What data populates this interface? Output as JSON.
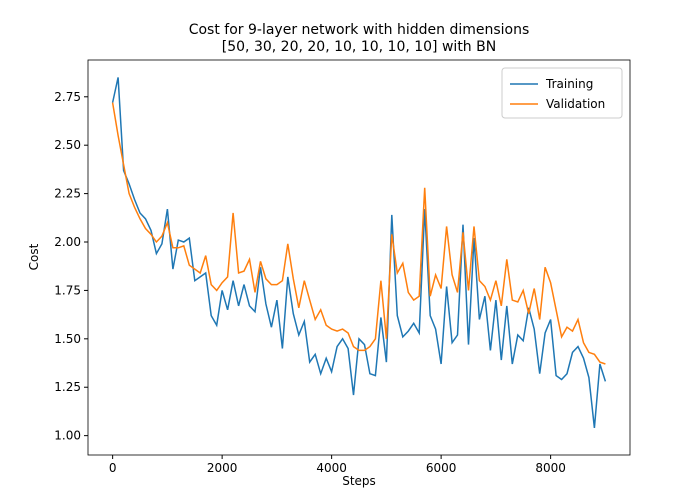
{
  "chart_data": {
    "type": "line",
    "title": [
      "Cost for 9-layer network with hidden dimensions",
      "[50, 30, 20, 20, 10, 10, 10, 10] with BN"
    ],
    "xlabel": "Steps",
    "ylabel": "Cost",
    "x": [
      0,
      100,
      200,
      300,
      400,
      500,
      600,
      700,
      800,
      900,
      1000,
      1100,
      1200,
      1300,
      1400,
      1500,
      1600,
      1700,
      1800,
      1900,
      2000,
      2100,
      2200,
      2300,
      2400,
      2500,
      2600,
      2700,
      2800,
      2900,
      3000,
      3100,
      3200,
      3300,
      3400,
      3500,
      3600,
      3700,
      3800,
      3900,
      4000,
      4100,
      4200,
      4300,
      4400,
      4500,
      4600,
      4700,
      4800,
      4900,
      5000,
      5100,
      5200,
      5300,
      5400,
      5500,
      5600,
      5700,
      5800,
      5900,
      6000,
      6100,
      6200,
      6300,
      6400,
      6500,
      6600,
      6700,
      6800,
      6900,
      7000,
      7100,
      7200,
      7300,
      7400,
      7500,
      7600,
      7700,
      7800,
      7900,
      8000,
      8100,
      8200,
      8300,
      8400,
      8500,
      8600,
      8700,
      8800,
      8900,
      9000
    ],
    "series": [
      {
        "name": "Training",
        "color": "#1f77b4",
        "values": [
          2.72,
          2.85,
          2.37,
          2.3,
          2.22,
          2.15,
          2.12,
          2.06,
          1.94,
          1.99,
          2.17,
          1.86,
          2.01,
          2.0,
          2.02,
          1.8,
          1.82,
          1.84,
          1.62,
          1.57,
          1.75,
          1.65,
          1.8,
          1.67,
          1.78,
          1.67,
          1.64,
          1.87,
          1.68,
          1.56,
          1.7,
          1.45,
          1.82,
          1.63,
          1.52,
          1.59,
          1.38,
          1.42,
          1.32,
          1.4,
          1.33,
          1.46,
          1.5,
          1.45,
          1.21,
          1.5,
          1.47,
          1.32,
          1.31,
          1.61,
          1.38,
          2.14,
          1.62,
          1.51,
          1.54,
          1.58,
          1.53,
          2.17,
          1.62,
          1.55,
          1.37,
          1.77,
          1.48,
          1.52,
          2.09,
          1.47,
          2.02,
          1.6,
          1.72,
          1.44,
          1.7,
          1.39,
          1.67,
          1.37,
          1.52,
          1.49,
          1.66,
          1.55,
          1.32,
          1.53,
          1.6,
          1.31,
          1.29,
          1.32,
          1.43,
          1.46,
          1.4,
          1.3,
          1.04,
          1.37,
          1.28
        ]
      },
      {
        "name": "Validation",
        "color": "#ff7f0e",
        "values": [
          2.72,
          2.55,
          2.4,
          2.25,
          2.18,
          2.12,
          2.07,
          2.04,
          2.0,
          2.03,
          2.1,
          1.97,
          1.97,
          1.98,
          1.88,
          1.86,
          1.84,
          1.93,
          1.78,
          1.75,
          1.79,
          1.82,
          2.15,
          1.84,
          1.85,
          1.91,
          1.74,
          1.9,
          1.81,
          1.78,
          1.78,
          1.8,
          1.99,
          1.81,
          1.66,
          1.8,
          1.7,
          1.6,
          1.65,
          1.57,
          1.55,
          1.54,
          1.55,
          1.53,
          1.46,
          1.44,
          1.44,
          1.46,
          1.5,
          1.8,
          1.5,
          2.04,
          1.84,
          1.89,
          1.74,
          1.7,
          1.72,
          2.28,
          1.72,
          1.83,
          1.76,
          2.08,
          1.83,
          1.74,
          2.05,
          1.75,
          2.08,
          1.8,
          1.77,
          1.7,
          1.8,
          1.67,
          1.91,
          1.7,
          1.69,
          1.75,
          1.63,
          1.76,
          1.6,
          1.87,
          1.79,
          1.65,
          1.51,
          1.56,
          1.54,
          1.6,
          1.48,
          1.43,
          1.42,
          1.38,
          1.37
        ]
      }
    ],
    "xlim": [
      -450,
      9450
    ],
    "ylim": [
      0.9,
      2.94
    ],
    "xticks": [
      0,
      2000,
      4000,
      6000,
      8000
    ],
    "yticks": [
      {
        "value": 1.0,
        "label": "1.00"
      },
      {
        "value": 1.25,
        "label": "1.25"
      },
      {
        "value": 1.5,
        "label": "1.50"
      },
      {
        "value": 1.75,
        "label": "1.75"
      },
      {
        "value": 2.0,
        "label": "2.00"
      },
      {
        "value": 2.25,
        "label": "2.25"
      },
      {
        "value": 2.5,
        "label": "2.50"
      },
      {
        "value": 2.75,
        "label": "2.75"
      }
    ],
    "legend": "upper right",
    "grid": false
  }
}
